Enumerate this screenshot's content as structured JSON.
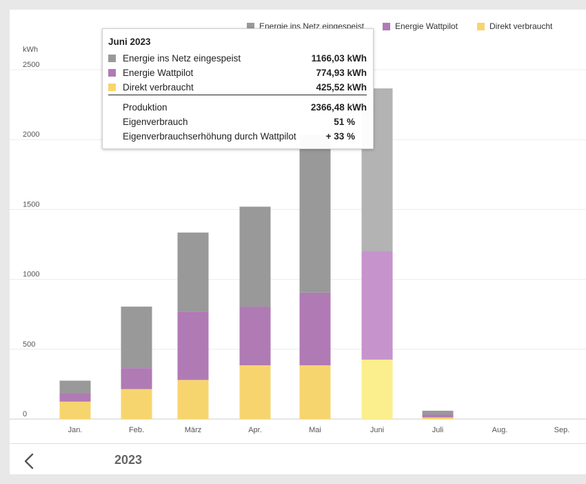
{
  "legend": [
    {
      "label": "Energie ins Netz eingespeist",
      "color": "#999999"
    },
    {
      "label": "Energie Wattpilot",
      "color": "#b07ab5"
    },
    {
      "label": "Direkt verbraucht",
      "color": "#f7d56e"
    }
  ],
  "chart_data": {
    "type": "bar",
    "stacked": true,
    "ylabel": "kWh",
    "ylim": [
      0,
      2500
    ],
    "yticks": [
      0,
      500,
      1000,
      1500,
      2000,
      2500
    ],
    "categories": [
      "Jan.",
      "Feb.",
      "März",
      "Apr.",
      "Mai",
      "Juni",
      "Juli",
      "Aug.",
      "Sep."
    ],
    "highlighted": "Juni",
    "series": [
      {
        "name": "Direkt verbraucht",
        "color": "#f7d56e",
        "highlight_color": "#fbee8c",
        "values": [
          125,
          215,
          280,
          385,
          385,
          425.52,
          12,
          0,
          0
        ]
      },
      {
        "name": "Energie Wattpilot",
        "color": "#b07ab5",
        "highlight_color": "#c693cd",
        "values": [
          60,
          150,
          490,
          420,
          520,
          774.93,
          20,
          0,
          0
        ]
      },
      {
        "name": "Energie ins Netz eingespeist",
        "color": "#999999",
        "highlight_color": "#b3b3b3",
        "values": [
          90,
          440,
          565,
          715,
          1130,
          1166.03,
          28,
          0,
          0
        ]
      }
    ],
    "grid": true,
    "legend_position": "top-right"
  },
  "tooltip": {
    "title": "Juni 2023",
    "rows": [
      {
        "label": "Energie ins Netz eingespeist",
        "value": "1166,03",
        "unit": "kWh",
        "color": "#999999"
      },
      {
        "label": "Energie Wattpilot",
        "value": "774,93",
        "unit": "kWh",
        "color": "#b07ab5"
      },
      {
        "label": "Direkt verbraucht",
        "value": "425,52",
        "unit": "kWh",
        "color": "#f7d56e"
      }
    ],
    "summary": [
      {
        "label": "Produktion",
        "value": "2366,48",
        "unit": "kWh"
      },
      {
        "label": "Eigenverbrauch",
        "value": "51",
        "unit": "%"
      },
      {
        "label": "Eigenverbrauchserhöhung durch Wattpilot",
        "value": "+ 33",
        "unit": "%"
      }
    ]
  },
  "footer": {
    "year": "2023"
  }
}
